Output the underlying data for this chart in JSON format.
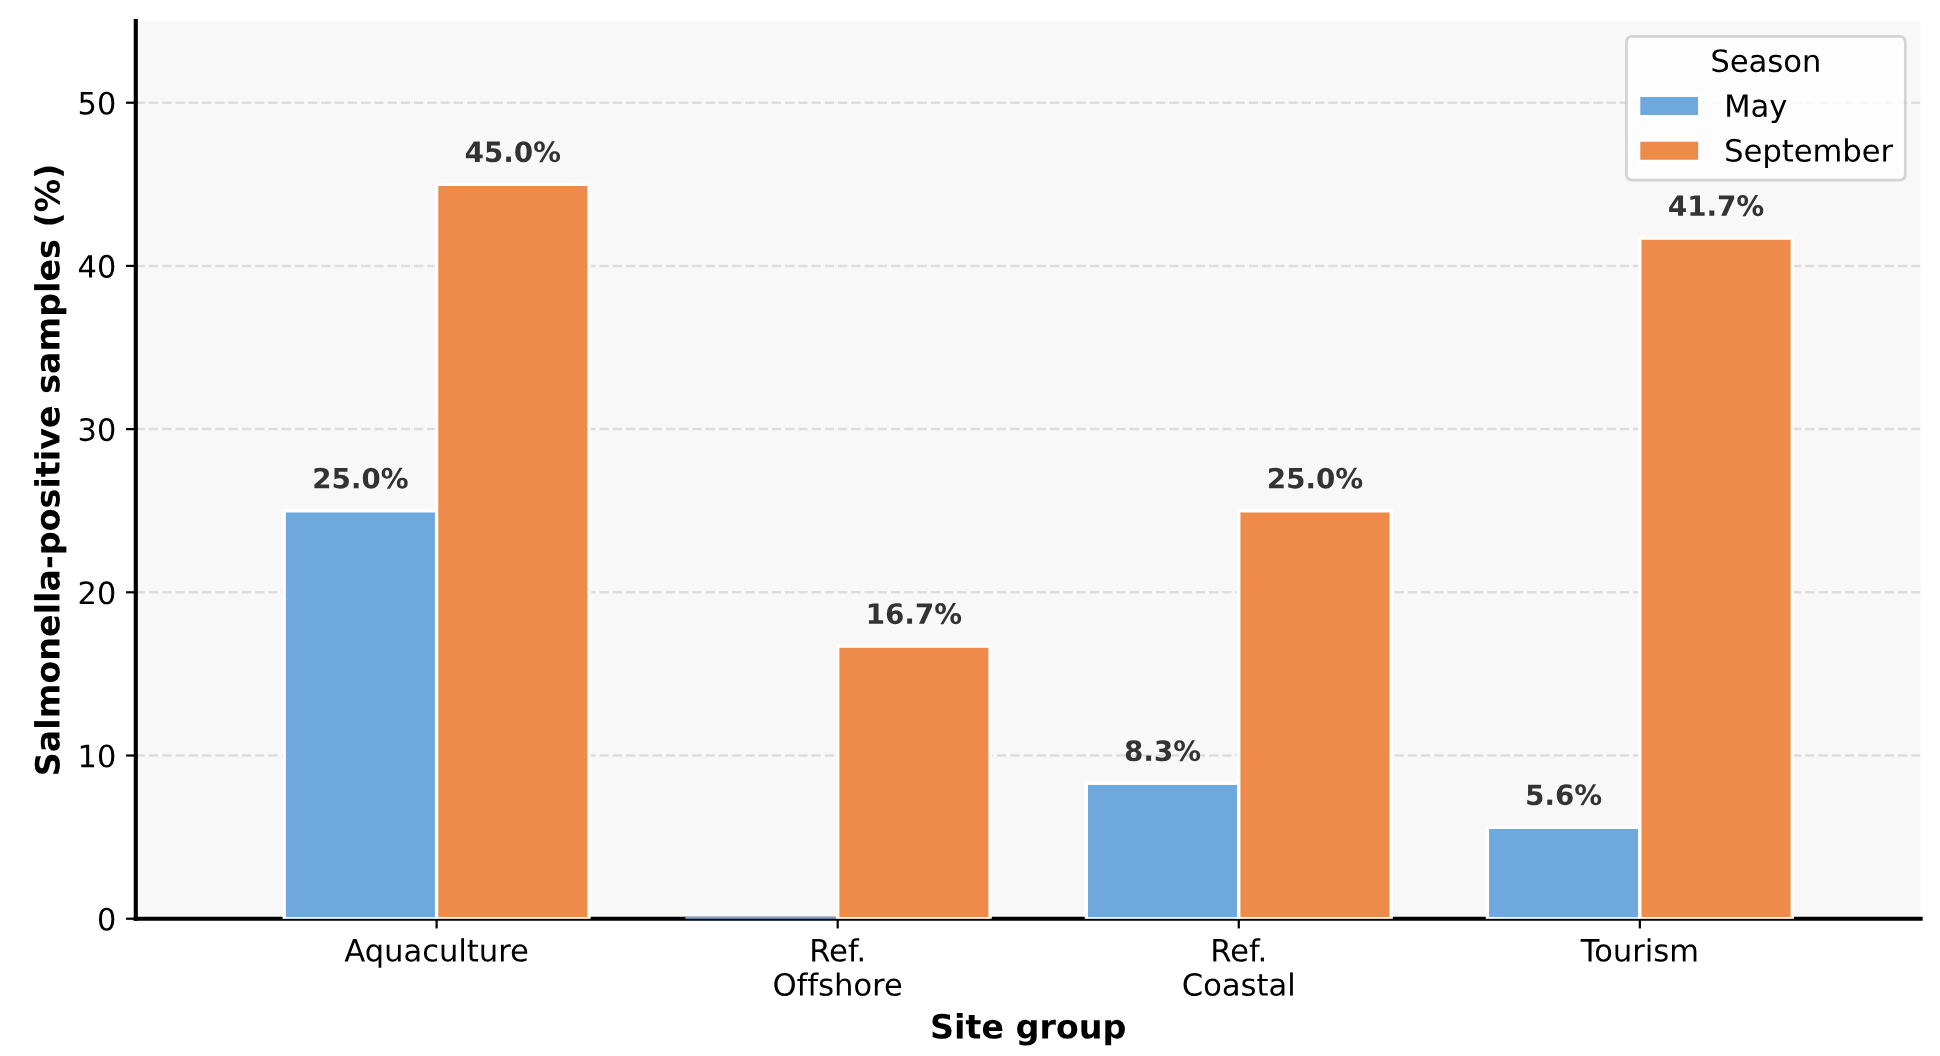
{
  "chart_data": {
    "type": "bar",
    "xlabel": "Site group",
    "ylabel": "Salmonella-positive samples (%)",
    "categories": [
      "Aquaculture",
      "Ref.\nOffshore",
      "Ref.\nCoastal",
      "Tourism"
    ],
    "series": [
      {
        "name": "May",
        "color": "#6fa8dc",
        "values": [
          25.0,
          0,
          8.3,
          5.6
        ],
        "value_labels": [
          "25.0%",
          null,
          "8.3%",
          "5.6%"
        ]
      },
      {
        "name": "September",
        "color": "#ee8a4a",
        "values": [
          45.0,
          16.7,
          25.0,
          41.7
        ],
        "value_labels": [
          "45.0%",
          "16.7%",
          "25.0%",
          "41.7%"
        ]
      }
    ],
    "legend_title": "Season",
    "legend": "top right",
    "ylim": [
      0,
      55
    ],
    "yticks": [
      0,
      10,
      20,
      30,
      40,
      50
    ],
    "grid": "y"
  }
}
